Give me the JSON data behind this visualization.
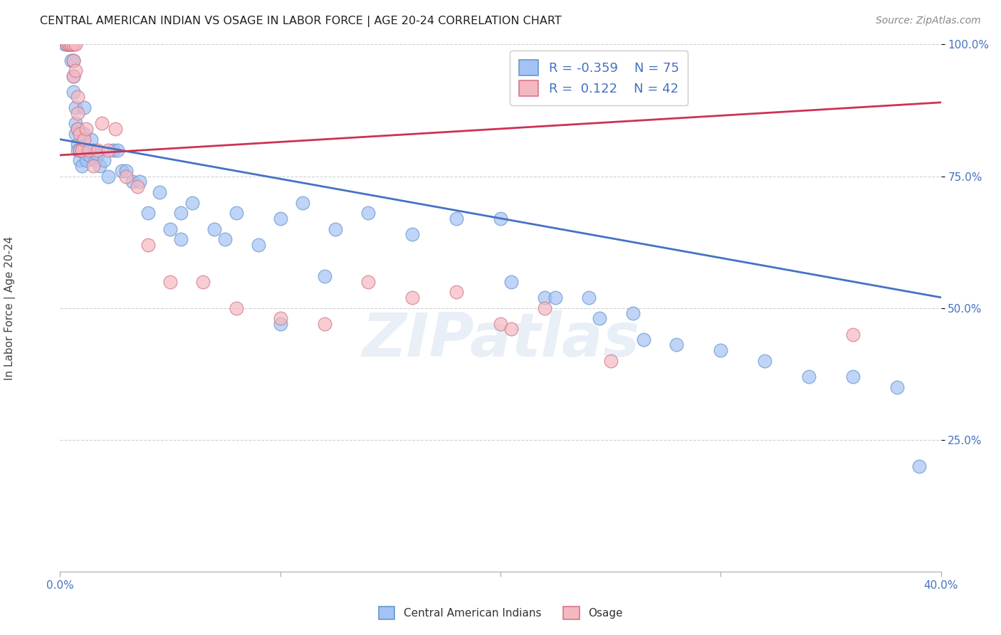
{
  "title": "CENTRAL AMERICAN INDIAN VS OSAGE IN LABOR FORCE | AGE 20-24 CORRELATION CHART",
  "source": "Source: ZipAtlas.com",
  "ylabel": "In Labor Force | Age 20-24",
  "xlim": [
    0.0,
    40.0
  ],
  "ylim": [
    0.0,
    100.0
  ],
  "blue_r": "-0.359",
  "blue_n": "75",
  "pink_r": "0.122",
  "pink_n": "42",
  "blue_color": "#a4c2f4",
  "blue_edge": "#6699cc",
  "pink_color": "#f4b8c1",
  "pink_edge": "#d4788a",
  "blue_line_color": "#4472c4",
  "pink_line_color": "#cc3355",
  "watermark": "ZIPatlas",
  "bg_color": "#ffffff",
  "grid_color": "#cccccc",
  "title_color": "#222222",
  "axis_tick_color": "#4472c4",
  "blue_line": [
    [
      0.0,
      82.0
    ],
    [
      40.0,
      52.0
    ]
  ],
  "pink_line": [
    [
      0.0,
      79.0
    ],
    [
      40.0,
      89.0
    ]
  ],
  "blue_x": [
    0.2,
    0.3,
    0.3,
    0.4,
    0.4,
    0.4,
    0.5,
    0.5,
    0.5,
    0.5,
    0.6,
    0.6,
    0.6,
    0.6,
    0.7,
    0.7,
    0.7,
    0.8,
    0.8,
    0.8,
    0.9,
    0.9,
    1.0,
    1.0,
    1.1,
    1.1,
    1.2,
    1.2,
    1.3,
    1.4,
    1.5,
    1.6,
    1.7,
    1.8,
    2.0,
    2.2,
    2.4,
    2.6,
    2.8,
    3.0,
    3.3,
    3.6,
    4.0,
    4.5,
    5.0,
    5.5,
    6.0,
    7.0,
    7.5,
    8.0,
    9.0,
    10.0,
    11.0,
    12.5,
    14.0,
    16.0,
    18.0,
    20.0,
    22.0,
    24.0,
    26.0,
    28.0,
    30.0,
    32.0,
    34.0,
    36.0,
    38.0,
    39.0,
    20.5,
    22.5,
    24.5,
    26.5,
    5.5,
    12.0,
    10.0
  ],
  "blue_y": [
    100,
    100,
    100,
    100,
    100,
    100,
    100,
    100,
    100,
    97,
    100,
    97,
    94,
    91,
    88,
    85,
    83,
    84,
    81,
    80,
    80,
    78,
    80,
    77,
    88,
    83,
    80,
    78,
    79,
    82,
    80,
    78,
    79,
    77,
    78,
    75,
    80,
    80,
    76,
    76,
    74,
    74,
    68,
    72,
    65,
    68,
    70,
    65,
    63,
    68,
    62,
    67,
    70,
    65,
    68,
    64,
    67,
    67,
    52,
    52,
    49,
    43,
    42,
    40,
    37,
    37,
    35,
    20,
    55,
    52,
    48,
    44,
    63,
    56,
    47
  ],
  "pink_x": [
    0.3,
    0.3,
    0.4,
    0.4,
    0.5,
    0.5,
    0.5,
    0.6,
    0.6,
    0.6,
    0.7,
    0.7,
    0.8,
    0.8,
    0.8,
    0.9,
    0.9,
    1.0,
    1.1,
    1.2,
    1.3,
    1.5,
    1.7,
    1.9,
    2.2,
    2.5,
    3.0,
    3.5,
    4.0,
    5.0,
    6.5,
    8.0,
    10.0,
    12.0,
    14.0,
    16.0,
    18.0,
    20.0,
    22.0,
    25.0,
    36.0,
    20.5
  ],
  "pink_y": [
    100,
    100,
    100,
    100,
    100,
    100,
    100,
    100,
    97,
    94,
    100,
    95,
    90,
    87,
    84,
    83,
    80,
    80,
    82,
    84,
    80,
    77,
    80,
    85,
    80,
    84,
    75,
    73,
    62,
    55,
    55,
    50,
    48,
    47,
    55,
    52,
    53,
    47,
    50,
    40,
    45,
    46
  ]
}
